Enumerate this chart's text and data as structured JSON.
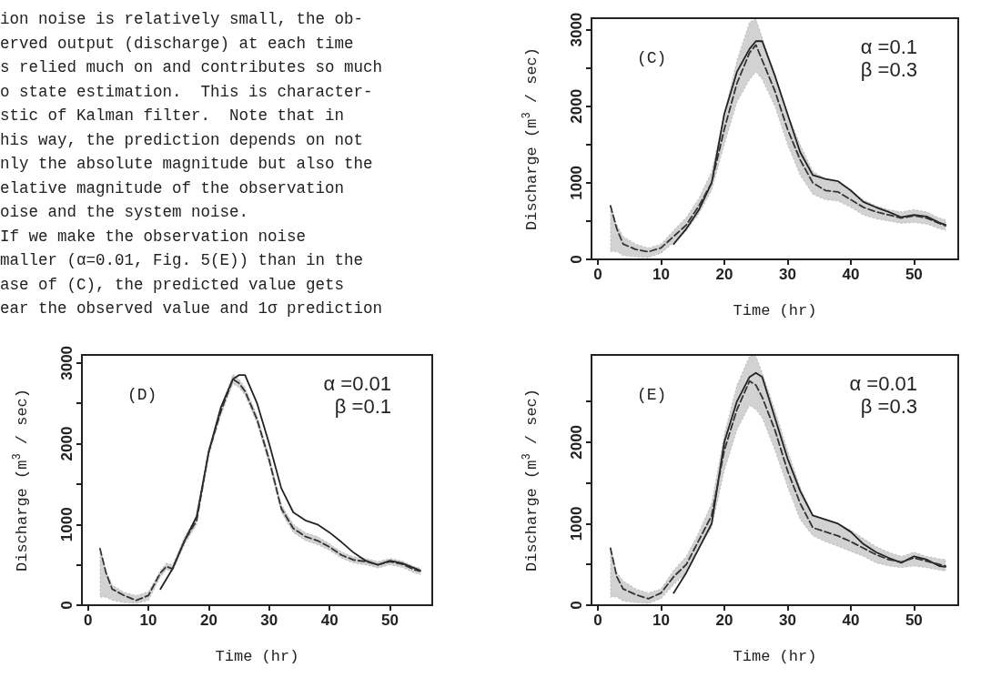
{
  "chart_data": [
    {
      "type": "other",
      "annotations": [
        "ion noise is relatively small, the ob-",
        "erved output (discharge) at each time",
        "s relied much on and contributes so much",
        "o state estimation.  This is character-",
        "stic of Kalman filter.  Note that in",
        "his way, the prediction depends on not",
        "nly the absolute magnitude but also the",
        "elative magnitude of the observation",
        "oise and the system noise.",
        "If we make the observation noise",
        "maller (α=0.01, Fig. 5(E)) than in the",
        "ase of (C), the predicted value gets",
        "ear the observed value and 1σ prediction"
      ]
    },
    {
      "type": "line",
      "xlabel": "Time (hr)",
      "ylabel": "Discharge (m$^{3}$ / sec)",
      "annotations": [
        "(C)",
        "α =0.1",
        "β =0.3"
      ],
      "xlim": [
        -1,
        57
      ],
      "xticks": [
        0,
        10,
        20,
        30,
        40,
        50
      ],
      "ylim": [
        0,
        3150
      ],
      "yticks": [
        0,
        {
          "value": 500,
          "label": null
        },
        1000,
        {
          "value": 1500,
          "label": null
        },
        2000,
        {
          "value": 2500,
          "label": null
        },
        3000
      ],
      "grid": false,
      "marker": "none",
      "series": [
        {
          "color": "#222222",
          "line_style": "solid",
          "x": [
            12,
            14,
            16,
            18,
            20,
            22,
            24,
            25,
            26,
            28,
            30,
            32,
            34,
            36,
            38,
            40,
            42,
            44,
            46,
            48,
            50,
            52,
            54,
            55
          ],
          "values": [
            200,
            400,
            650,
            1000,
            1900,
            2450,
            2750,
            2850,
            2850,
            2400,
            1900,
            1400,
            1100,
            1050,
            1020,
            900,
            750,
            680,
            620,
            550,
            580,
            560,
            480,
            450
          ]
        },
        {
          "color": "#333333",
          "line_style": "dashed",
          "x": [
            2,
            3,
            4,
            6,
            8,
            10,
            12,
            14,
            16,
            18,
            20,
            22,
            24,
            25,
            26,
            28,
            30,
            32,
            34,
            36,
            38,
            40,
            42,
            44,
            46,
            48,
            50,
            52,
            54,
            55
          ],
          "values": [
            700,
            400,
            200,
            130,
            100,
            150,
            300,
            450,
            700,
            1000,
            1700,
            2300,
            2700,
            2800,
            2600,
            2200,
            1700,
            1300,
            1000,
            900,
            880,
            780,
            680,
            620,
            580,
            540,
            570,
            540,
            470,
            440
          ],
          "upper": [
            700,
            450,
            300,
            200,
            150,
            200,
            380,
            550,
            800,
            1150,
            1900,
            2600,
            3100,
            3140,
            2900,
            2400,
            1900,
            1500,
            1150,
            1050,
            1000,
            900,
            780,
            700,
            650,
            620,
            650,
            620,
            540,
            520
          ],
          "lower": [
            100,
            100,
            50,
            30,
            20,
            80,
            220,
            370,
            600,
            900,
            1500,
            2050,
            2350,
            2450,
            2350,
            2000,
            1500,
            1100,
            850,
            780,
            760,
            680,
            580,
            530,
            500,
            470,
            480,
            460,
            400,
            380
          ]
        }
      ]
    },
    {
      "type": "line",
      "xlabel": "Time (hr)",
      "ylabel": "Discharge (m$^{3}$ / sec)",
      "annotations": [
        "(D)",
        "α =0.01",
        "β =0.1"
      ],
      "xlim": [
        -1,
        57
      ],
      "xticks": [
        0,
        10,
        20,
        30,
        40,
        50
      ],
      "ylim": [
        0,
        3100
      ],
      "yticks": [
        0,
        {
          "value": 500,
          "label": null
        },
        1000,
        {
          "value": 1500,
          "label": null
        },
        2000,
        {
          "value": 2500,
          "label": null
        },
        3000
      ],
      "grid": false,
      "marker": "none",
      "series": [
        {
          "color": "#222222",
          "line_style": "solid",
          "x": [
            12,
            14,
            16,
            18,
            20,
            22,
            24,
            25,
            26,
            28,
            30,
            32,
            34,
            36,
            38,
            40,
            42,
            44,
            46,
            48,
            50,
            52,
            54,
            55
          ],
          "values": [
            200,
            450,
            800,
            1100,
            1900,
            2450,
            2800,
            2850,
            2850,
            2500,
            2000,
            1450,
            1150,
            1050,
            1000,
            900,
            780,
            650,
            550,
            500,
            550,
            520,
            460,
            430
          ]
        },
        {
          "color": "#333333",
          "line_style": "dashed",
          "x": [
            2,
            3,
            4,
            6,
            8,
            10,
            12,
            13,
            14,
            16,
            18,
            20,
            22,
            24,
            25,
            26,
            28,
            30,
            32,
            34,
            36,
            38,
            40,
            42,
            44,
            46,
            48,
            50,
            52,
            54,
            55
          ],
          "values": [
            700,
            400,
            200,
            120,
            60,
            120,
            400,
            480,
            450,
            800,
            1050,
            1900,
            2400,
            2800,
            2750,
            2650,
            2300,
            1800,
            1200,
            950,
            850,
            800,
            720,
            620,
            560,
            540,
            500,
            540,
            510,
            440,
            420
          ],
          "upper": [
            700,
            420,
            250,
            160,
            120,
            170,
            430,
            520,
            500,
            850,
            1100,
            1950,
            2450,
            2860,
            2800,
            2700,
            2350,
            1850,
            1250,
            1000,
            900,
            850,
            760,
            660,
            600,
            580,
            540,
            580,
            550,
            480,
            460
          ],
          "lower": [
            100,
            100,
            60,
            30,
            20,
            60,
            350,
            440,
            420,
            750,
            1000,
            1850,
            2350,
            2740,
            2700,
            2600,
            2250,
            1750,
            1150,
            900,
            800,
            750,
            680,
            580,
            520,
            500,
            460,
            500,
            470,
            400,
            380
          ]
        }
      ]
    },
    {
      "type": "line",
      "xlabel": "Time (hr)",
      "ylabel": "Discharge (m$^{3}$ / sec)",
      "annotations": [
        "(E)",
        "α =0.01",
        "β =0.3"
      ],
      "xlim": [
        -1,
        57
      ],
      "xticks": [
        0,
        10,
        20,
        30,
        40,
        50
      ],
      "ylim": [
        0,
        3070
      ],
      "yticks": [
        0,
        {
          "value": 500,
          "label": null
        },
        1000,
        {
          "value": 1500,
          "label": null
        },
        2000,
        {
          "value": 2500,
          "label": null
        }
      ],
      "grid": false,
      "marker": "none",
      "series": [
        {
          "color": "#222222",
          "line_style": "solid",
          "x": [
            12,
            14,
            16,
            18,
            20,
            22,
            24,
            25,
            26,
            28,
            30,
            32,
            34,
            36,
            38,
            40,
            42,
            44,
            46,
            48,
            50,
            52,
            54,
            55
          ],
          "values": [
            150,
            400,
            700,
            1000,
            2000,
            2500,
            2800,
            2850,
            2800,
            2300,
            1800,
            1400,
            1100,
            1050,
            1000,
            900,
            750,
            650,
            580,
            520,
            600,
            560,
            480,
            470
          ]
        },
        {
          "color": "#333333",
          "line_style": "dashed",
          "x": [
            2,
            3,
            4,
            6,
            8,
            10,
            12,
            14,
            16,
            18,
            20,
            22,
            24,
            25,
            26,
            28,
            30,
            32,
            34,
            36,
            38,
            40,
            42,
            44,
            46,
            48,
            50,
            52,
            54,
            55
          ],
          "values": [
            700,
            350,
            200,
            130,
            80,
            150,
            350,
            500,
            800,
            1100,
            1900,
            2400,
            2750,
            2700,
            2550,
            2150,
            1650,
            1250,
            950,
            900,
            850,
            780,
            700,
            620,
            560,
            530,
            580,
            540,
            500,
            480
          ],
          "upper": [
            700,
            400,
            300,
            200,
            150,
            200,
            430,
            600,
            900,
            1250,
            2100,
            2700,
            3060,
            3060,
            2850,
            2400,
            1900,
            1450,
            1100,
            1050,
            1000,
            920,
            820,
            720,
            650,
            600,
            650,
            600,
            570,
            560
          ],
          "lower": [
            100,
            100,
            50,
            30,
            20,
            80,
            250,
            400,
            700,
            950,
            1650,
            2150,
            2450,
            2400,
            2300,
            1900,
            1450,
            1050,
            850,
            780,
            720,
            660,
            600,
            520,
            480,
            460,
            480,
            460,
            430,
            420
          ]
        }
      ]
    }
  ]
}
